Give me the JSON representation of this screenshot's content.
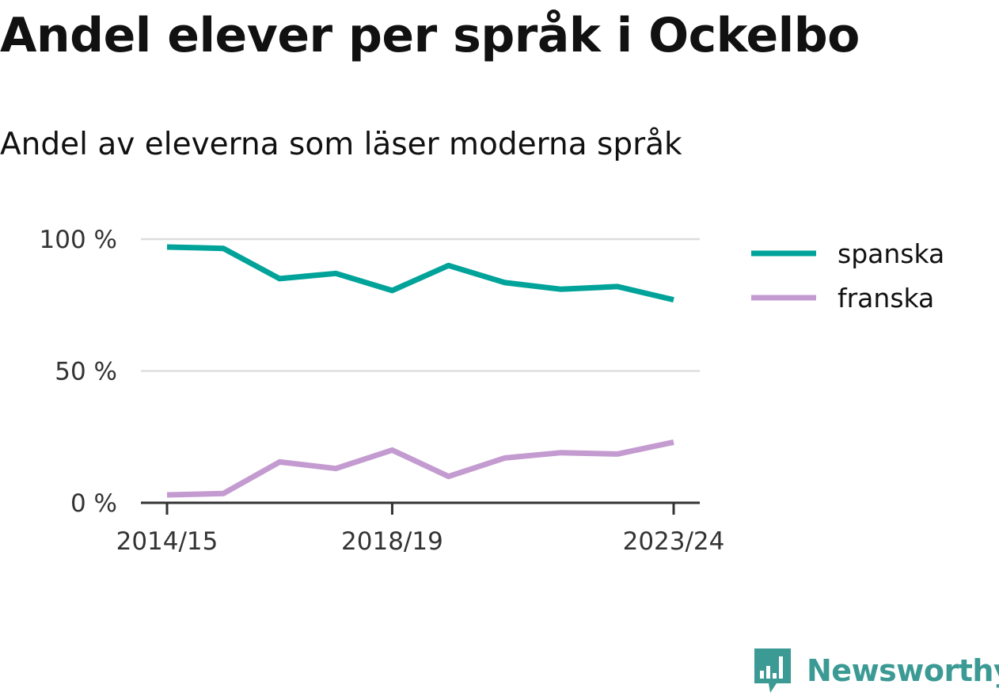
{
  "title": "Andel elever per språk i Ockelbo",
  "subtitle": "Andel av eleverna som läser moderna språk",
  "brand": {
    "name": "Newsworthy",
    "icon": "newsworthy-logo-icon",
    "color": "#3b9a94"
  },
  "chart_data": {
    "type": "line",
    "x": [
      "2014/15",
      "2015/16",
      "2016/17",
      "2017/18",
      "2018/19",
      "2019/20",
      "2020/21",
      "2021/22",
      "2022/23",
      "2023/24"
    ],
    "x_tick_labels": [
      "2014/15",
      "2018/19",
      "2023/24"
    ],
    "ylim": [
      0,
      100
    ],
    "y_tick_labels": [
      "0 %",
      "50 %",
      "100 %"
    ],
    "y_ticks": [
      0,
      50,
      100
    ],
    "grid": true,
    "legend_position": "right",
    "series": [
      {
        "name": "spanska",
        "color": "#00a39a",
        "values": [
          97,
          96.5,
          85,
          87,
          80.5,
          90,
          83.5,
          81,
          82,
          77
        ]
      },
      {
        "name": "franska",
        "color": "#c49bd0",
        "values": [
          3,
          3.5,
          15.5,
          13,
          20,
          10,
          17,
          19,
          18.5,
          23
        ]
      }
    ]
  }
}
